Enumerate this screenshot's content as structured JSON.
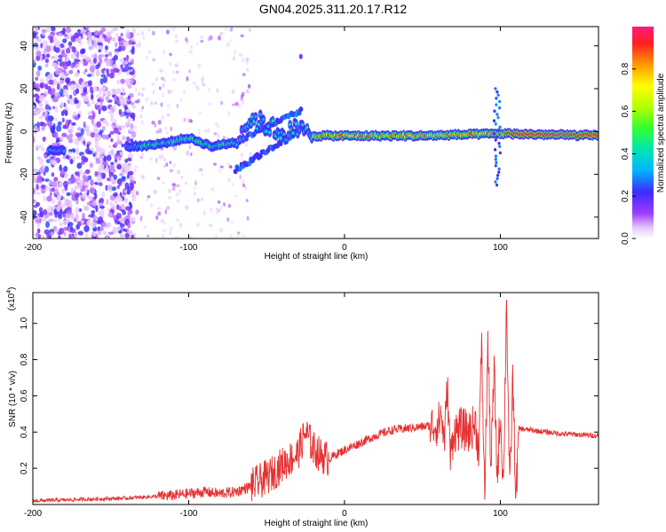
{
  "title": "GN04.2025.311.20.17.R12",
  "colors": {
    "snr_line": "#e53030",
    "axis": "#000000",
    "background": "#ffffff"
  },
  "chart_data": [
    {
      "type": "heatmap",
      "xlabel": "Height of straight line (km)",
      "ylabel": "Frequency (Hz)",
      "xlim": [
        -200,
        163
      ],
      "ylim": [
        -50,
        49
      ],
      "xticks": [
        -200,
        -100,
        0,
        100
      ],
      "yticks": [
        -40,
        -20,
        0,
        20,
        40
      ],
      "colorbar": {
        "label": "Normalized spectral amplitude",
        "range": [
          0,
          1
        ],
        "ticks": [
          0.0,
          0.2,
          0.4,
          0.6,
          0.8
        ]
      },
      "ridge": {
        "description_points": [
          {
            "x": -190,
            "freq": -9
          },
          {
            "x": -135,
            "freq": -7
          },
          {
            "x": -120,
            "freq": -6
          },
          {
            "x": -100,
            "freq": -3
          },
          {
            "x": -85,
            "freq": -7
          },
          {
            "x": -70,
            "freq": -5
          },
          {
            "x": -60,
            "freq": 6
          },
          {
            "x": -50,
            "freq": 3
          },
          {
            "x": -40,
            "freq": -1
          },
          {
            "x": -30,
            "freq": 1
          },
          {
            "x": -20,
            "freq": -2
          },
          {
            "x": 0,
            "freq": -2
          },
          {
            "x": 50,
            "freq": -2
          },
          {
            "x": 100,
            "freq": -1
          },
          {
            "x": 163,
            "freq": -2
          }
        ]
      }
    },
    {
      "type": "line",
      "xlabel": "Height of straight line (km)",
      "ylabel": "SNR (10 * v/v)",
      "yscale_label": "(x10",
      "yscale_exp": "4",
      "xlim": [
        -200,
        163
      ],
      "ylim": [
        0,
        1.17
      ],
      "xticks": [
        -200,
        -100,
        0,
        100
      ],
      "yticks": [
        0.2,
        0.4,
        0.6,
        0.8,
        1.0
      ],
      "series": [
        {
          "name": "SNR",
          "x": [
            -200,
            -180,
            -160,
            -140,
            -120,
            -110,
            -100,
            -90,
            -80,
            -70,
            -60,
            -50,
            -45,
            -40,
            -35,
            -30,
            -25,
            -20,
            -15,
            -10,
            -5,
            0,
            10,
            20,
            30,
            40,
            50,
            60,
            62,
            64,
            66,
            68,
            70,
            75,
            80,
            84,
            86,
            88,
            90,
            92,
            94,
            96,
            98,
            100,
            102,
            104,
            106,
            108,
            110,
            112,
            120,
            140,
            163
          ],
          "values": [
            0.02,
            0.025,
            0.03,
            0.035,
            0.045,
            0.05,
            0.06,
            0.07,
            0.06,
            0.07,
            0.1,
            0.15,
            0.18,
            0.22,
            0.25,
            0.28,
            0.4,
            0.31,
            0.27,
            0.25,
            0.28,
            0.3,
            0.34,
            0.38,
            0.41,
            0.42,
            0.43,
            0.44,
            0.5,
            0.35,
            0.65,
            0.25,
            0.4,
            0.42,
            0.4,
            0.45,
            0.3,
            0.85,
            0.05,
            0.9,
            0.2,
            0.75,
            0.15,
            0.5,
            0.1,
            1.15,
            0.05,
            0.7,
            0.03,
            0.42,
            0.41,
            0.39,
            0.38
          ]
        }
      ]
    }
  ]
}
